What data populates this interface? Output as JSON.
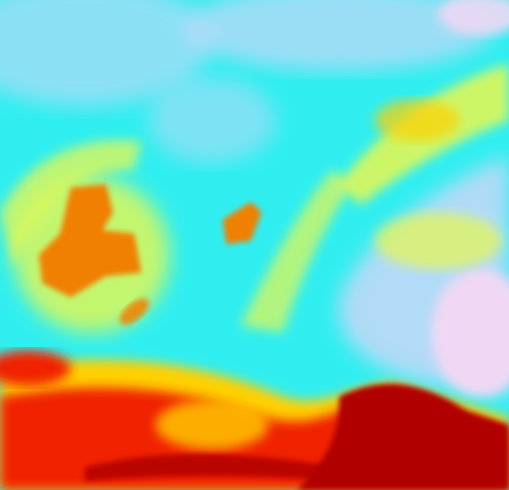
{
  "image": {
    "kind": "false-color satellite imagery",
    "palette": {
      "cold_clear": "#30eef0",
      "haze": "#c8d8f8",
      "cloud_top": "#f0d8f4",
      "low": "#e8f850",
      "mid": "#ffd000",
      "warm": "#f08000",
      "hot": "#f02000",
      "hottest": "#b00000"
    }
  }
}
